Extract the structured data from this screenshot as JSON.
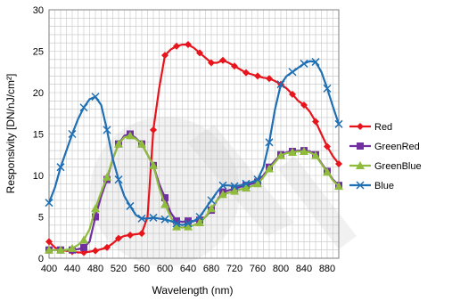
{
  "chart_data": {
    "type": "line",
    "xlabel": "Wavelength (nm)",
    "ylabel": "Responsivity [DN/nJ/cm²]",
    "xlim": [
      400,
      900
    ],
    "ylim": [
      0,
      30
    ],
    "x_ticks": [
      400,
      440,
      480,
      520,
      560,
      600,
      640,
      680,
      720,
      760,
      800,
      840,
      880
    ],
    "y_ticks": [
      0,
      5,
      10,
      15,
      20,
      25,
      30
    ],
    "grid": true,
    "legend_position": "right",
    "x": [
      400,
      410,
      420,
      430,
      440,
      450,
      460,
      470,
      480,
      490,
      500,
      510,
      520,
      530,
      540,
      550,
      560,
      570,
      580,
      590,
      600,
      610,
      620,
      630,
      640,
      650,
      660,
      670,
      680,
      690,
      700,
      710,
      720,
      730,
      740,
      750,
      760,
      770,
      780,
      790,
      800,
      810,
      820,
      830,
      840,
      850,
      860,
      870,
      880,
      890,
      900
    ],
    "series": [
      {
        "name": "Red",
        "color": "#e8141c",
        "marker": "diamond",
        "values": [
          2.0,
          1.3,
          1.0,
          0.9,
          0.8,
          0.7,
          0.7,
          0.8,
          0.9,
          1.1,
          1.3,
          1.8,
          2.4,
          2.7,
          2.8,
          2.9,
          3.0,
          5.0,
          15.5,
          20.5,
          24.5,
          25.2,
          25.6,
          25.8,
          25.8,
          25.4,
          24.8,
          24.2,
          23.6,
          23.6,
          23.9,
          23.6,
          23.2,
          22.8,
          22.4,
          22.2,
          22.0,
          21.8,
          21.7,
          21.4,
          21.0,
          20.5,
          19.8,
          19.0,
          18.5,
          17.7,
          16.5,
          15.0,
          13.5,
          12.3,
          11.4
        ]
      },
      {
        "name": "GreenRed",
        "color": "#7030a0",
        "marker": "square",
        "values": [
          1.0,
          1.0,
          1.0,
          1.0,
          1.0,
          1.1,
          1.3,
          2.0,
          5.0,
          7.5,
          9.5,
          12.0,
          13.8,
          14.8,
          15.0,
          14.5,
          13.8,
          12.5,
          11.2,
          9.0,
          7.3,
          5.5,
          4.5,
          4.4,
          4.5,
          4.5,
          4.6,
          5.0,
          5.8,
          7.0,
          8.0,
          8.2,
          8.4,
          8.6,
          8.8,
          9.0,
          9.2,
          10.0,
          11.0,
          11.8,
          12.5,
          12.8,
          12.9,
          13.0,
          13.0,
          12.9,
          12.5,
          11.5,
          10.5,
          9.5,
          8.8
        ]
      },
      {
        "name": "GreenBlue",
        "color": "#8fbc3c",
        "marker": "triangle",
        "values": [
          1.0,
          1.0,
          1.0,
          1.0,
          1.2,
          1.6,
          2.2,
          3.5,
          6.0,
          8.0,
          9.8,
          12.0,
          13.8,
          14.6,
          14.8,
          14.4,
          13.8,
          12.5,
          11.2,
          8.5,
          6.5,
          5.0,
          3.8,
          3.7,
          3.8,
          4.0,
          4.3,
          5.0,
          6.0,
          7.0,
          7.7,
          7.9,
          8.1,
          8.3,
          8.5,
          8.7,
          9.0,
          9.8,
          10.8,
          11.6,
          12.4,
          12.7,
          12.8,
          12.9,
          12.9,
          12.8,
          12.4,
          11.4,
          10.4,
          9.4,
          8.7
        ]
      },
      {
        "name": "Blue",
        "color": "#1f6fb4",
        "marker": "x",
        "values": [
          6.7,
          8.5,
          11.0,
          13.0,
          15.0,
          16.8,
          18.2,
          19.2,
          19.5,
          18.5,
          15.5,
          12.0,
          9.5,
          7.5,
          6.3,
          5.2,
          4.8,
          4.8,
          4.9,
          4.8,
          4.7,
          4.5,
          4.2,
          4.0,
          4.2,
          4.5,
          5.0,
          6.0,
          7.0,
          8.0,
          8.8,
          8.8,
          8.7,
          8.8,
          9.0,
          9.2,
          9.5,
          11.0,
          14.0,
          18.0,
          21.0,
          22.0,
          22.5,
          23.0,
          23.5,
          23.8,
          23.7,
          22.5,
          20.5,
          18.3,
          16.2
        ]
      }
    ]
  }
}
